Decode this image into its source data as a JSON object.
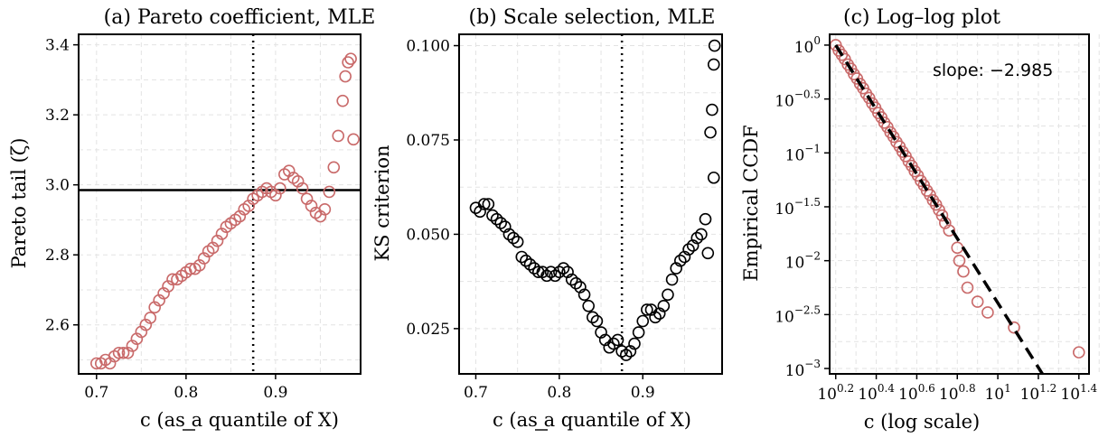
{
  "chart_data": [
    {
      "type": "scatter",
      "title": "(a) Pareto coefficient, MLE",
      "xlabel": "c (as a quantile of X)",
      "ylabel": "Pareto tail (ζ)",
      "xlim": [
        0.68,
        0.995
      ],
      "ylim": [
        2.46,
        3.43
      ],
      "xticks": [
        0.7,
        0.8,
        0.9
      ],
      "xtick_labels": [
        "0.7",
        "0.8",
        "0.9"
      ],
      "yticks": [
        2.6,
        2.8,
        3.0,
        3.2,
        3.4
      ],
      "ytick_labels": [
        "2.6",
        "2.8",
        "3.0",
        "3.2",
        "3.4"
      ],
      "vline_x": 0.875,
      "hline_y": 2.985,
      "color": "#c96a6a",
      "grid": true,
      "points": [
        [
          0.7,
          2.49
        ],
        [
          0.705,
          2.49
        ],
        [
          0.71,
          2.5
        ],
        [
          0.715,
          2.49
        ],
        [
          0.72,
          2.51
        ],
        [
          0.725,
          2.52
        ],
        [
          0.73,
          2.52
        ],
        [
          0.735,
          2.52
        ],
        [
          0.74,
          2.54
        ],
        [
          0.745,
          2.56
        ],
        [
          0.75,
          2.58
        ],
        [
          0.755,
          2.6
        ],
        [
          0.76,
          2.62
        ],
        [
          0.765,
          2.65
        ],
        [
          0.77,
          2.67
        ],
        [
          0.775,
          2.69
        ],
        [
          0.78,
          2.71
        ],
        [
          0.785,
          2.73
        ],
        [
          0.79,
          2.73
        ],
        [
          0.795,
          2.74
        ],
        [
          0.8,
          2.75
        ],
        [
          0.805,
          2.76
        ],
        [
          0.81,
          2.76
        ],
        [
          0.815,
          2.77
        ],
        [
          0.82,
          2.79
        ],
        [
          0.825,
          2.81
        ],
        [
          0.83,
          2.82
        ],
        [
          0.835,
          2.84
        ],
        [
          0.84,
          2.86
        ],
        [
          0.845,
          2.88
        ],
        [
          0.85,
          2.89
        ],
        [
          0.855,
          2.9
        ],
        [
          0.86,
          2.91
        ],
        [
          0.865,
          2.93
        ],
        [
          0.87,
          2.94
        ],
        [
          0.875,
          2.96
        ],
        [
          0.88,
          2.97
        ],
        [
          0.885,
          2.98
        ],
        [
          0.89,
          2.99
        ],
        [
          0.895,
          2.98
        ],
        [
          0.9,
          2.97
        ],
        [
          0.905,
          2.99
        ],
        [
          0.91,
          3.03
        ],
        [
          0.915,
          3.04
        ],
        [
          0.92,
          3.02
        ],
        [
          0.925,
          3.01
        ],
        [
          0.93,
          2.99
        ],
        [
          0.935,
          2.96
        ],
        [
          0.94,
          2.94
        ],
        [
          0.945,
          2.92
        ],
        [
          0.95,
          2.91
        ],
        [
          0.955,
          2.93
        ],
        [
          0.96,
          2.98
        ],
        [
          0.965,
          3.05
        ],
        [
          0.97,
          3.14
        ],
        [
          0.975,
          3.24
        ],
        [
          0.978,
          3.31
        ],
        [
          0.981,
          3.35
        ],
        [
          0.984,
          3.36
        ],
        [
          0.987,
          3.13
        ]
      ]
    },
    {
      "type": "scatter",
      "title": "(b) Scale selection, MLE",
      "xlabel": "c (as a quantile of X)",
      "ylabel": "KS criterion",
      "xlim": [
        0.68,
        0.995
      ],
      "ylim": [
        0.013,
        0.103
      ],
      "xticks": [
        0.7,
        0.8,
        0.9
      ],
      "xtick_labels": [
        "0.7",
        "0.8",
        "0.9"
      ],
      "yticks": [
        0.025,
        0.05,
        0.075,
        0.1
      ],
      "ytick_labels": [
        "0.025",
        "0.050",
        "0.075",
        "0.100"
      ],
      "vline_x": 0.875,
      "color": "#000000",
      "grid": true,
      "points": [
        [
          0.7,
          0.057
        ],
        [
          0.705,
          0.056
        ],
        [
          0.71,
          0.058
        ],
        [
          0.715,
          0.058
        ],
        [
          0.72,
          0.055
        ],
        [
          0.725,
          0.054
        ],
        [
          0.73,
          0.053
        ],
        [
          0.735,
          0.052
        ],
        [
          0.74,
          0.05
        ],
        [
          0.745,
          0.049
        ],
        [
          0.75,
          0.048
        ],
        [
          0.755,
          0.044
        ],
        [
          0.76,
          0.043
        ],
        [
          0.765,
          0.042
        ],
        [
          0.77,
          0.041
        ],
        [
          0.775,
          0.04
        ],
        [
          0.78,
          0.04
        ],
        [
          0.785,
          0.039
        ],
        [
          0.79,
          0.04
        ],
        [
          0.795,
          0.039
        ],
        [
          0.8,
          0.04
        ],
        [
          0.805,
          0.041
        ],
        [
          0.81,
          0.04
        ],
        [
          0.815,
          0.038
        ],
        [
          0.82,
          0.037
        ],
        [
          0.825,
          0.036
        ],
        [
          0.83,
          0.034
        ],
        [
          0.835,
          0.031
        ],
        [
          0.84,
          0.028
        ],
        [
          0.845,
          0.027
        ],
        [
          0.85,
          0.024
        ],
        [
          0.855,
          0.022
        ],
        [
          0.86,
          0.02
        ],
        [
          0.865,
          0.021
        ],
        [
          0.87,
          0.022
        ],
        [
          0.875,
          0.019
        ],
        [
          0.88,
          0.018
        ],
        [
          0.885,
          0.019
        ],
        [
          0.89,
          0.021
        ],
        [
          0.895,
          0.024
        ],
        [
          0.9,
          0.027
        ],
        [
          0.905,
          0.03
        ],
        [
          0.91,
          0.03
        ],
        [
          0.915,
          0.028
        ],
        [
          0.92,
          0.029
        ],
        [
          0.925,
          0.031
        ],
        [
          0.93,
          0.034
        ],
        [
          0.935,
          0.038
        ],
        [
          0.94,
          0.041
        ],
        [
          0.945,
          0.043
        ],
        [
          0.95,
          0.044
        ],
        [
          0.955,
          0.046
        ],
        [
          0.96,
          0.047
        ],
        [
          0.965,
          0.049
        ],
        [
          0.97,
          0.05
        ],
        [
          0.975,
          0.054
        ],
        [
          0.978,
          0.045
        ],
        [
          0.981,
          0.077
        ],
        [
          0.983,
          0.083
        ],
        [
          0.985,
          0.065
        ],
        [
          0.985,
          0.095
        ],
        [
          0.986,
          0.1
        ]
      ]
    },
    {
      "type": "scatter",
      "title": "(c) Log–log plot",
      "xlabel": "c (log scale)",
      "ylabel": "Empirical CCDF",
      "log_x": true,
      "log_y": true,
      "xlim_log10": [
        0.17,
        1.45
      ],
      "ylim_log10": [
        -3.05,
        0.1
      ],
      "xticks_log10": [
        0.2,
        0.4,
        0.6,
        0.8,
        1.0,
        1.2,
        1.4
      ],
      "xtick_base": [
        "10",
        "10",
        "10",
        "10",
        "10",
        "10",
        "10"
      ],
      "xtick_exp": [
        "0.2",
        "0.4",
        "0.6",
        "0.8",
        "1",
        "1.2",
        "1.4"
      ],
      "yticks_log10": [
        0,
        -0.5,
        -1,
        -1.5,
        -2,
        -2.5,
        -3
      ],
      "ytick_base": [
        "10",
        "10",
        "10",
        "10",
        "10",
        "10",
        "10"
      ],
      "ytick_exp": [
        "0",
        "−0.5",
        "−1",
        "−1.5",
        "−2",
        "−2.5",
        "−3"
      ],
      "annotation": "slope: −2.985",
      "fit_line_log10": [
        [
          0.2,
          0.0
        ],
        [
          1.22,
          -3.05
        ]
      ],
      "color": "#c96a6a",
      "grid": true,
      "points_log10": [
        [
          0.2,
          0.0
        ],
        [
          0.215,
          -0.05
        ],
        [
          0.23,
          -0.09
        ],
        [
          0.245,
          -0.13
        ],
        [
          0.26,
          -0.18
        ],
        [
          0.275,
          -0.22
        ],
        [
          0.29,
          -0.27
        ],
        [
          0.305,
          -0.31
        ],
        [
          0.32,
          -0.36
        ],
        [
          0.335,
          -0.4
        ],
        [
          0.35,
          -0.45
        ],
        [
          0.365,
          -0.49
        ],
        [
          0.38,
          -0.54
        ],
        [
          0.395,
          -0.58
        ],
        [
          0.41,
          -0.63
        ],
        [
          0.425,
          -0.67
        ],
        [
          0.44,
          -0.72
        ],
        [
          0.455,
          -0.76
        ],
        [
          0.47,
          -0.81
        ],
        [
          0.485,
          -0.85
        ],
        [
          0.5,
          -0.9
        ],
        [
          0.515,
          -0.94
        ],
        [
          0.53,
          -0.99
        ],
        [
          0.545,
          -1.03
        ],
        [
          0.56,
          -1.08
        ],
        [
          0.575,
          -1.12
        ],
        [
          0.59,
          -1.17
        ],
        [
          0.605,
          -1.21
        ],
        [
          0.62,
          -1.26
        ],
        [
          0.635,
          -1.3
        ],
        [
          0.65,
          -1.35
        ],
        [
          0.665,
          -1.39
        ],
        [
          0.68,
          -1.44
        ],
        [
          0.695,
          -1.48
        ],
        [
          0.71,
          -1.53
        ],
        [
          0.725,
          -1.58
        ],
        [
          0.74,
          -1.65
        ],
        [
          0.76,
          -1.72
        ],
        [
          0.8,
          -1.88
        ],
        [
          0.81,
          -2.0
        ],
        [
          0.83,
          -2.1
        ],
        [
          0.85,
          -2.25
        ],
        [
          0.9,
          -2.38
        ],
        [
          0.95,
          -2.48
        ],
        [
          1.08,
          -2.62
        ],
        [
          1.4,
          -2.85
        ]
      ]
    }
  ]
}
